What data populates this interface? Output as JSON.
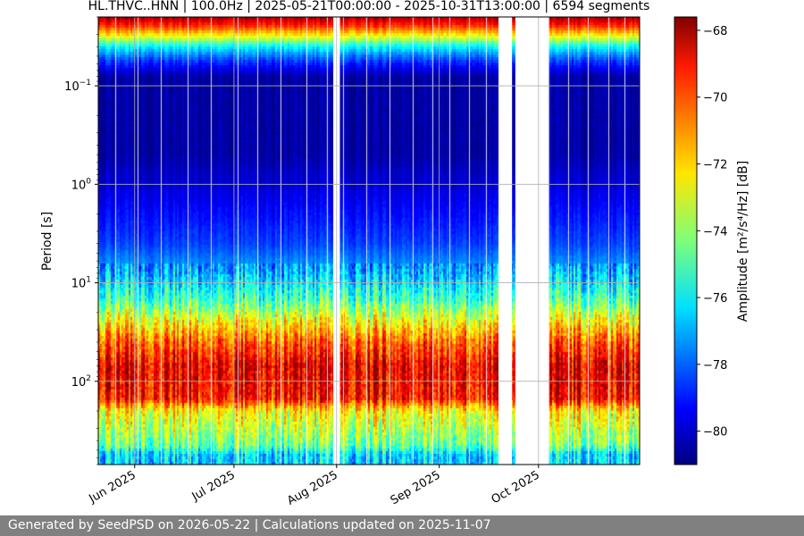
{
  "chart_data": {
    "type": "heatmap",
    "title": "HL.THVC..HNN | 100.0Hz | 2025-05-21T00:00:00 - 2025-10-31T13:00:00 | 6594 segments",
    "ylabel": "Period [s]",
    "y_scale": "log",
    "y_inverted": true,
    "ylim": [
      0.02,
      700
    ],
    "y_ticks": [
      {
        "value": 0.1,
        "base": "10",
        "exp": "−1"
      },
      {
        "value": 1,
        "base": "10",
        "exp": "0"
      },
      {
        "value": 10,
        "base": "10",
        "exp": "1"
      },
      {
        "value": 100,
        "base": "10",
        "exp": "2"
      }
    ],
    "x_range": [
      "2025-05-21",
      "2025-10-31"
    ],
    "x_ticks": [
      {
        "date": "2025-06-01",
        "label": "Jun 2025"
      },
      {
        "date": "2025-07-01",
        "label": "Jul 2025"
      },
      {
        "date": "2025-08-01",
        "label": "Aug 2025"
      },
      {
        "date": "2025-09-01",
        "label": "Sep 2025"
      },
      {
        "date": "2025-10-01",
        "label": "Oct 2025"
      }
    ],
    "data_gaps": [
      {
        "start": "2025-07-31",
        "end": "2025-08-02"
      },
      {
        "start": "2025-09-19",
        "end": "2025-09-23"
      },
      {
        "start": "2025-09-24",
        "end": "2025-10-04"
      }
    ],
    "spectral_profile": [
      {
        "period": 0.02,
        "db": -68
      },
      {
        "period": 0.025,
        "db": -70
      },
      {
        "period": 0.032,
        "db": -73
      },
      {
        "period": 0.04,
        "db": -76
      },
      {
        "period": 0.055,
        "db": -78.5
      },
      {
        "period": 0.08,
        "db": -80.5
      },
      {
        "period": 0.5,
        "db": -80.5
      },
      {
        "period": 1.5,
        "db": -79.5
      },
      {
        "period": 4,
        "db": -78.5
      },
      {
        "period": 8,
        "db": -77
      },
      {
        "period": 15,
        "db": -75
      },
      {
        "period": 25,
        "db": -72.5
      },
      {
        "period": 40,
        "db": -70.5
      },
      {
        "period": 70,
        "db": -69
      },
      {
        "period": 150,
        "db": -69.5
      },
      {
        "period": 200,
        "db": -72.5
      },
      {
        "period": 300,
        "db": -73.5
      },
      {
        "period": 450,
        "db": -74.5
      },
      {
        "period": 550,
        "db": -76.5
      },
      {
        "period": 700,
        "db": -76.5
      }
    ],
    "colorbar": {
      "label": "Amplitude [m²/s⁴/Hz] [dB]",
      "colormap": "jet",
      "vmin": -81,
      "vmax": -67.6,
      "ticks": [
        "−68",
        "−70",
        "−72",
        "−74",
        "−76",
        "−78",
        "−80"
      ]
    },
    "grid": true
  },
  "footer_text": "Generated by SeedPSD on 2026-05-22 | Calculations updated on 2025-11-07"
}
